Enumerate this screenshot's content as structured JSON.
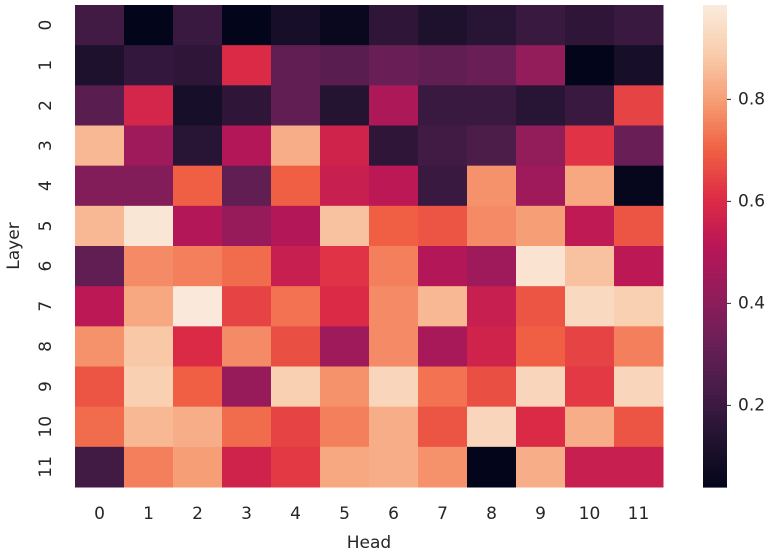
{
  "chart_data": {
    "type": "heatmap",
    "colormap": "rocket",
    "xlabel": "Head",
    "ylabel": "Layer",
    "xcategories": [
      "0",
      "1",
      "2",
      "3",
      "4",
      "5",
      "6",
      "7",
      "8",
      "9",
      "10",
      "11"
    ],
    "ycategories": [
      "0",
      "1",
      "2",
      "3",
      "4",
      "5",
      "6",
      "7",
      "8",
      "9",
      "10",
      "11"
    ],
    "values": [
      [
        0.22,
        0.04,
        0.2,
        0.04,
        0.1,
        0.06,
        0.17,
        0.12,
        0.15,
        0.2,
        0.17,
        0.2
      ],
      [
        0.12,
        0.18,
        0.17,
        0.6,
        0.3,
        0.28,
        0.32,
        0.3,
        0.32,
        0.42,
        0.04,
        0.1
      ],
      [
        0.28,
        0.58,
        0.1,
        0.17,
        0.3,
        0.14,
        0.48,
        0.2,
        0.2,
        0.15,
        0.2,
        0.65
      ],
      [
        0.85,
        0.45,
        0.15,
        0.5,
        0.83,
        0.57,
        0.17,
        0.22,
        0.25,
        0.42,
        0.62,
        0.32
      ],
      [
        0.38,
        0.38,
        0.7,
        0.3,
        0.7,
        0.55,
        0.52,
        0.2,
        0.78,
        0.45,
        0.82,
        0.05
      ],
      [
        0.85,
        0.97,
        0.5,
        0.43,
        0.5,
        0.87,
        0.7,
        0.68,
        0.77,
        0.8,
        0.53,
        0.68
      ],
      [
        0.3,
        0.77,
        0.75,
        0.72,
        0.55,
        0.62,
        0.75,
        0.5,
        0.45,
        0.96,
        0.87,
        0.52
      ],
      [
        0.52,
        0.82,
        0.98,
        0.65,
        0.73,
        0.6,
        0.77,
        0.85,
        0.55,
        0.68,
        0.93,
        0.9
      ],
      [
        0.78,
        0.88,
        0.6,
        0.77,
        0.67,
        0.45,
        0.77,
        0.47,
        0.57,
        0.7,
        0.65,
        0.75
      ],
      [
        0.68,
        0.9,
        0.7,
        0.43,
        0.9,
        0.78,
        0.92,
        0.73,
        0.67,
        0.92,
        0.63,
        0.92
      ],
      [
        0.72,
        0.85,
        0.83,
        0.72,
        0.65,
        0.75,
        0.83,
        0.68,
        0.92,
        0.6,
        0.83,
        0.68
      ],
      [
        0.22,
        0.75,
        0.8,
        0.57,
        0.63,
        0.82,
        0.83,
        0.78,
        0.04,
        0.83,
        0.55,
        0.55
      ]
    ],
    "zlim": [
      0.04,
      0.985
    ],
    "zticks": [
      0.2,
      0.4,
      0.6,
      0.8
    ]
  }
}
